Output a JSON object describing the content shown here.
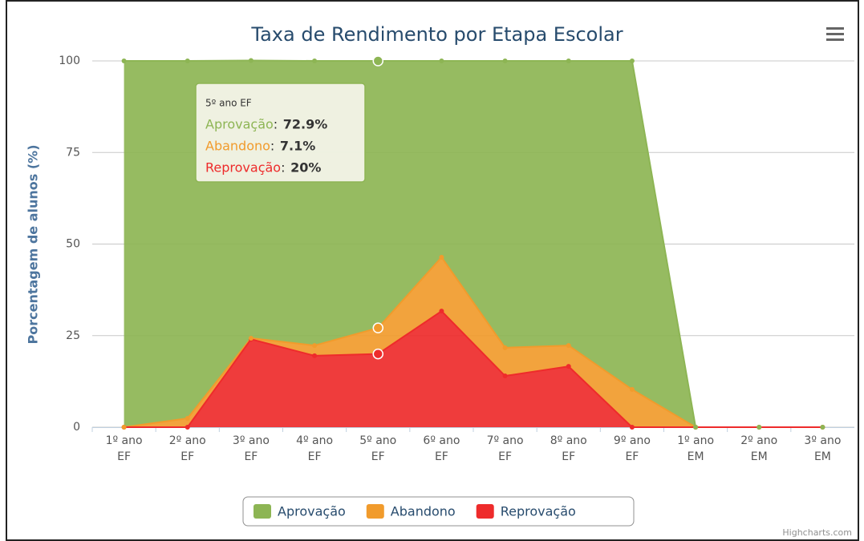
{
  "chart_data": {
    "type": "area",
    "title": "Taxa de Rendimento por Etapa Escolar",
    "y_axis_label": "Porcentagem de alunos (%)",
    "categories": [
      "1º ano EF",
      "2º ano EF",
      "3º ano EF",
      "4º ano EF",
      "5º ano EF",
      "6º ano EF",
      "7º ano EF",
      "8º ano EF",
      "9º ano EF",
      "1º ano EM",
      "2º ano EM",
      "3º ano EM"
    ],
    "stacked": true,
    "series": [
      {
        "name": "Aprovação",
        "color": "#8db554",
        "values": [
          100,
          97.6,
          75.8,
          77.7,
          72.9,
          53.6,
          78.3,
          77.7,
          89.7,
          0,
          0,
          0
        ]
      },
      {
        "name": "Abandono",
        "color": "#f19b2c",
        "values": [
          0,
          2.4,
          0.3,
          2.8,
          7.1,
          14.7,
          7.7,
          5.7,
          10.3,
          0,
          0,
          0
        ]
      },
      {
        "name": "Reprovação",
        "color": "#ee2b2b",
        "values": [
          0,
          0,
          24,
          19.5,
          20,
          31.7,
          14,
          16.6,
          0,
          0,
          0,
          0
        ]
      }
    ],
    "ylim": [
      0,
      100
    ],
    "yticks": [
      0,
      25,
      50,
      75,
      100
    ],
    "grid": true,
    "legend": "bottom",
    "tooltip": {
      "title": "5º ano EF",
      "labels": [
        "72.9%",
        "7.1%",
        "20%"
      ]
    },
    "credits": "Highcharts.com"
  }
}
